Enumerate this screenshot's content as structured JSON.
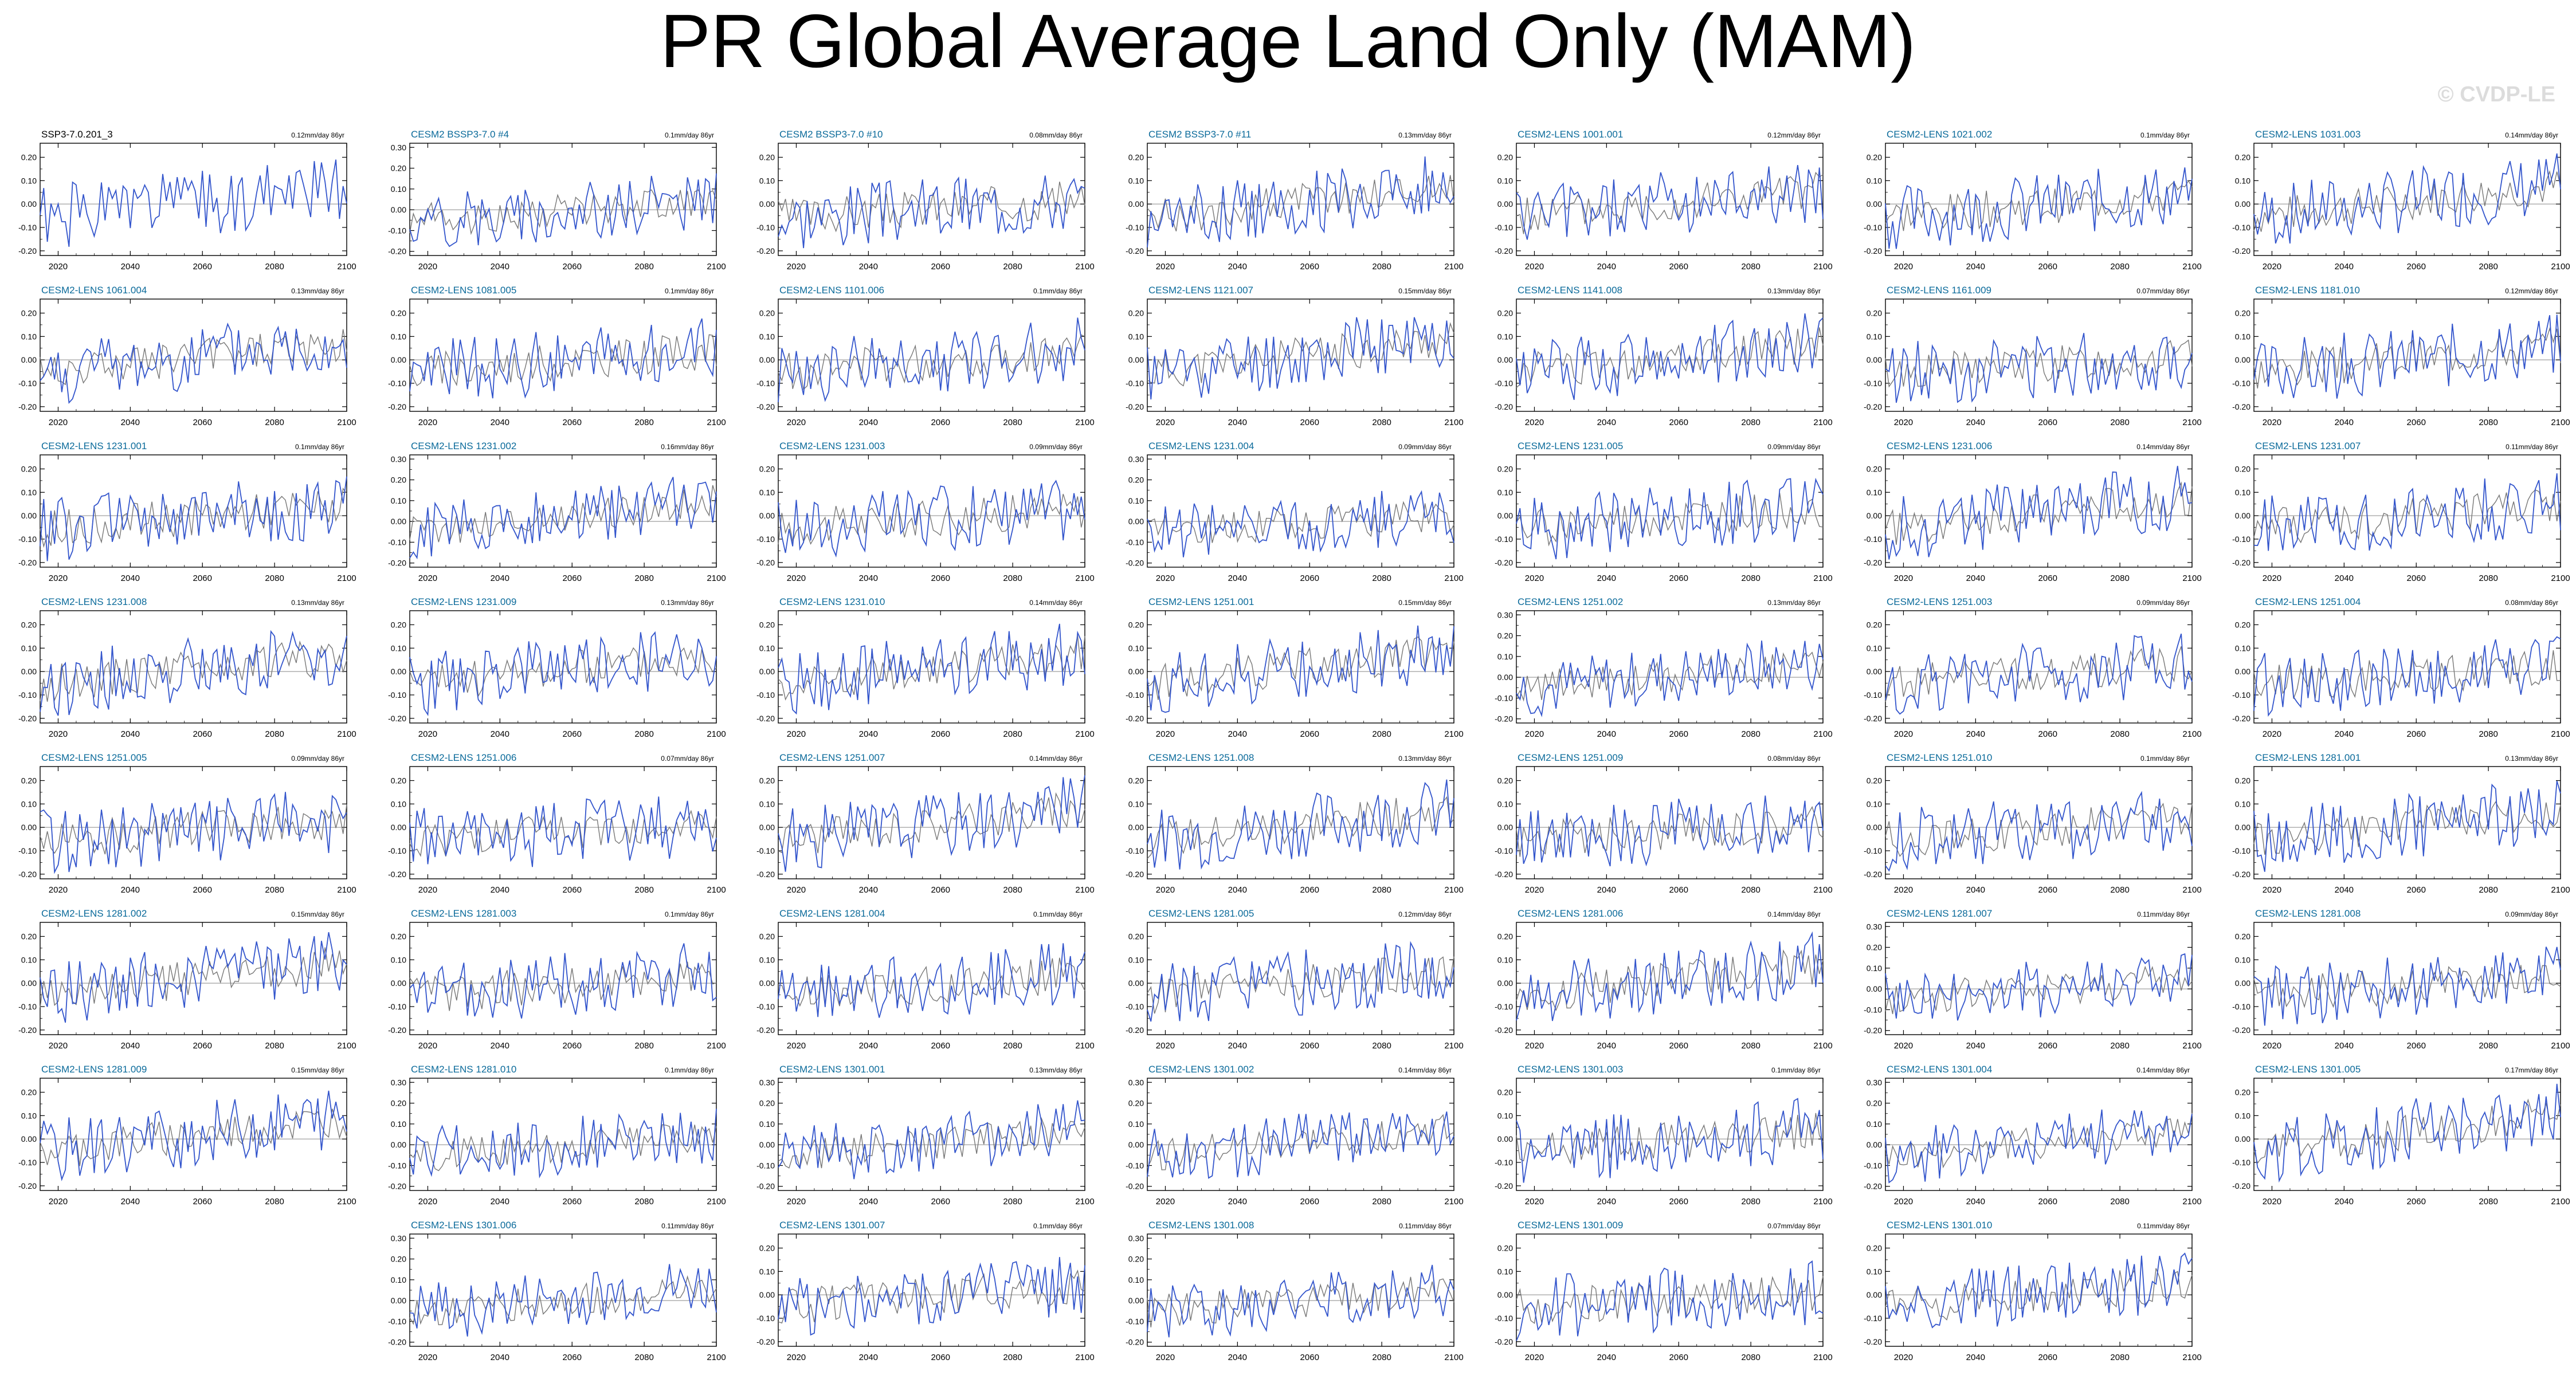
{
  "title": "PR Global Average Land Only (MAM)",
  "watermark": "© CVDP-LE",
  "colors": {
    "observed": "#3355cc",
    "ensemble_mean": "#777777",
    "label": "#0a6a9a",
    "first_label": "#000000"
  },
  "chart_data": {
    "type": "line",
    "panel_type": "time series small multiples",
    "x_range": [
      2015,
      2100
    ],
    "x_ticks": [
      2020,
      2040,
      2060,
      2080,
      2100
    ],
    "y_range": [
      -0.2,
      0.3
    ],
    "y_ticks_default": [
      "0.20",
      "0.10",
      "0.00",
      "-0.10",
      "-0.20"
    ],
    "y_ticks_with_030": [
      "0.30",
      "0.20",
      "0.10",
      "0.00",
      "-0.10",
      "-0.20"
    ],
    "panels": [
      {
        "label": "SSP3-7.0.201_3",
        "trend": "0.12mm/day 86yr",
        "max": 0.2,
        "seed": 1
      },
      {
        "label": "CESM2 BSSP3-7.0 #4",
        "trend": "0.1mm/day 86yr",
        "max": 0.3,
        "seed": 2
      },
      {
        "label": "CESM2 BSSP3-7.0 #10",
        "trend": "0.08mm/day 86yr",
        "max": 0.2,
        "seed": 3
      },
      {
        "label": "CESM2 BSSP3-7.0 #11",
        "trend": "0.13mm/day 86yr",
        "max": 0.2,
        "seed": 4
      },
      {
        "label": "CESM2-LENS 1001.001",
        "trend": "0.12mm/day 86yr",
        "max": 0.2,
        "seed": 5
      },
      {
        "label": "CESM2-LENS 1021.002",
        "trend": "0.1mm/day 86yr",
        "max": 0.2,
        "seed": 6
      },
      {
        "label": "CESM2-LENS 1031.003",
        "trend": "0.14mm/day 86yr",
        "max": 0.2,
        "seed": 7
      },
      {
        "label": "CESM2-LENS 1061.004",
        "trend": "0.13mm/day 86yr",
        "max": 0.2,
        "seed": 8
      },
      {
        "label": "CESM2-LENS 1081.005",
        "trend": "0.1mm/day 86yr",
        "max": 0.2,
        "seed": 9
      },
      {
        "label": "CESM2-LENS 1101.006",
        "trend": "0.1mm/day 86yr",
        "max": 0.2,
        "seed": 10
      },
      {
        "label": "CESM2-LENS 1121.007",
        "trend": "0.15mm/day 86yr",
        "max": 0.2,
        "seed": 11
      },
      {
        "label": "CESM2-LENS 1141.008",
        "trend": "0.13mm/day 86yr",
        "max": 0.2,
        "seed": 12
      },
      {
        "label": "CESM2-LENS 1161.009",
        "trend": "0.07mm/day 86yr",
        "max": 0.2,
        "seed": 13
      },
      {
        "label": "CESM2-LENS 1181.010",
        "trend": "0.12mm/day 86yr",
        "max": 0.2,
        "seed": 14
      },
      {
        "label": "CESM2-LENS 1231.001",
        "trend": "0.1mm/day 86yr",
        "max": 0.2,
        "seed": 15
      },
      {
        "label": "CESM2-LENS 1231.002",
        "trend": "0.16mm/day 86yr",
        "max": 0.3,
        "seed": 16
      },
      {
        "label": "CESM2-LENS 1231.003",
        "trend": "0.09mm/day 86yr",
        "max": 0.2,
        "seed": 17
      },
      {
        "label": "CESM2-LENS 1231.004",
        "trend": "0.09mm/day 86yr",
        "max": 0.3,
        "seed": 18
      },
      {
        "label": "CESM2-LENS 1231.005",
        "trend": "0.09mm/day 86yr",
        "max": 0.2,
        "seed": 19
      },
      {
        "label": "CESM2-LENS 1231.006",
        "trend": "0.14mm/day 86yr",
        "max": 0.2,
        "seed": 20
      },
      {
        "label": "CESM2-LENS 1231.007",
        "trend": "0.11mm/day 86yr",
        "max": 0.2,
        "seed": 21
      },
      {
        "label": "CESM2-LENS 1231.008",
        "trend": "0.13mm/day 86yr",
        "max": 0.2,
        "seed": 22
      },
      {
        "label": "CESM2-LENS 1231.009",
        "trend": "0.13mm/day 86yr",
        "max": 0.2,
        "seed": 23
      },
      {
        "label": "CESM2-LENS 1231.010",
        "trend": "0.14mm/day 86yr",
        "max": 0.2,
        "seed": 24
      },
      {
        "label": "CESM2-LENS 1251.001",
        "trend": "0.15mm/day 86yr",
        "max": 0.2,
        "seed": 25
      },
      {
        "label": "CESM2-LENS 1251.002",
        "trend": "0.13mm/day 86yr",
        "max": 0.3,
        "seed": 26
      },
      {
        "label": "CESM2-LENS 1251.003",
        "trend": "0.09mm/day 86yr",
        "max": 0.2,
        "seed": 27
      },
      {
        "label": "CESM2-LENS 1251.004",
        "trend": "0.08mm/day 86yr",
        "max": 0.2,
        "seed": 28
      },
      {
        "label": "CESM2-LENS 1251.005",
        "trend": "0.09mm/day 86yr",
        "max": 0.2,
        "seed": 29
      },
      {
        "label": "CESM2-LENS 1251.006",
        "trend": "0.07mm/day 86yr",
        "max": 0.2,
        "seed": 30
      },
      {
        "label": "CESM2-LENS 1251.007",
        "trend": "0.14mm/day 86yr",
        "max": 0.2,
        "seed": 31
      },
      {
        "label": "CESM2-LENS 1251.008",
        "trend": "0.13mm/day 86yr",
        "max": 0.2,
        "seed": 32
      },
      {
        "label": "CESM2-LENS 1251.009",
        "trend": "0.08mm/day 86yr",
        "max": 0.2,
        "seed": 33
      },
      {
        "label": "CESM2-LENS 1251.010",
        "trend": "0.1mm/day 86yr",
        "max": 0.2,
        "seed": 34
      },
      {
        "label": "CESM2-LENS 1281.001",
        "trend": "0.13mm/day 86yr",
        "max": 0.2,
        "seed": 35
      },
      {
        "label": "CESM2-LENS 1281.002",
        "trend": "0.15mm/day 86yr",
        "max": 0.2,
        "seed": 36
      },
      {
        "label": "CESM2-LENS 1281.003",
        "trend": "0.1mm/day 86yr",
        "max": 0.2,
        "seed": 37
      },
      {
        "label": "CESM2-LENS 1281.004",
        "trend": "0.1mm/day 86yr",
        "max": 0.2,
        "seed": 38
      },
      {
        "label": "CESM2-LENS 1281.005",
        "trend": "0.12mm/day 86yr",
        "max": 0.2,
        "seed": 39
      },
      {
        "label": "CESM2-LENS 1281.006",
        "trend": "0.14mm/day 86yr",
        "max": 0.2,
        "seed": 40
      },
      {
        "label": "CESM2-LENS 1281.007",
        "trend": "0.11mm/day 86yr",
        "max": 0.3,
        "seed": 41
      },
      {
        "label": "CESM2-LENS 1281.008",
        "trend": "0.09mm/day 86yr",
        "max": 0.2,
        "seed": 42
      },
      {
        "label": "CESM2-LENS 1281.009",
        "trend": "0.15mm/day 86yr",
        "max": 0.2,
        "seed": 43
      },
      {
        "label": "CESM2-LENS 1281.010",
        "trend": "0.1mm/day 86yr",
        "max": 0.3,
        "seed": 44
      },
      {
        "label": "CESM2-LENS 1301.001",
        "trend": "0.13mm/day 86yr",
        "max": 0.3,
        "seed": 45
      },
      {
        "label": "CESM2-LENS 1301.002",
        "trend": "0.14mm/day 86yr",
        "max": 0.3,
        "seed": 46
      },
      {
        "label": "CESM2-LENS 1301.003",
        "trend": "0.1mm/day 86yr",
        "max": 0.2,
        "seed": 47
      },
      {
        "label": "CESM2-LENS 1301.004",
        "trend": "0.14mm/day 86yr",
        "max": 0.3,
        "seed": 48
      },
      {
        "label": "CESM2-LENS 1301.005",
        "trend": "0.17mm/day 86yr",
        "max": 0.2,
        "seed": 49
      },
      {
        "label": "CESM2-LENS 1301.006",
        "trend": "0.11mm/day 86yr",
        "max": 0.3,
        "seed": 50
      },
      {
        "label": "CESM2-LENS 1301.007",
        "trend": "0.1mm/day 86yr",
        "max": 0.2,
        "seed": 51
      },
      {
        "label": "CESM2-LENS 1301.008",
        "trend": "0.11mm/day 86yr",
        "max": 0.3,
        "seed": 52
      },
      {
        "label": "CESM2-LENS 1301.009",
        "trend": "0.07mm/day 86yr",
        "max": 0.2,
        "seed": 53
      },
      {
        "label": "CESM2-LENS 1301.010",
        "trend": "0.11mm/day 86yr",
        "max": 0.2,
        "seed": 54
      }
    ]
  }
}
